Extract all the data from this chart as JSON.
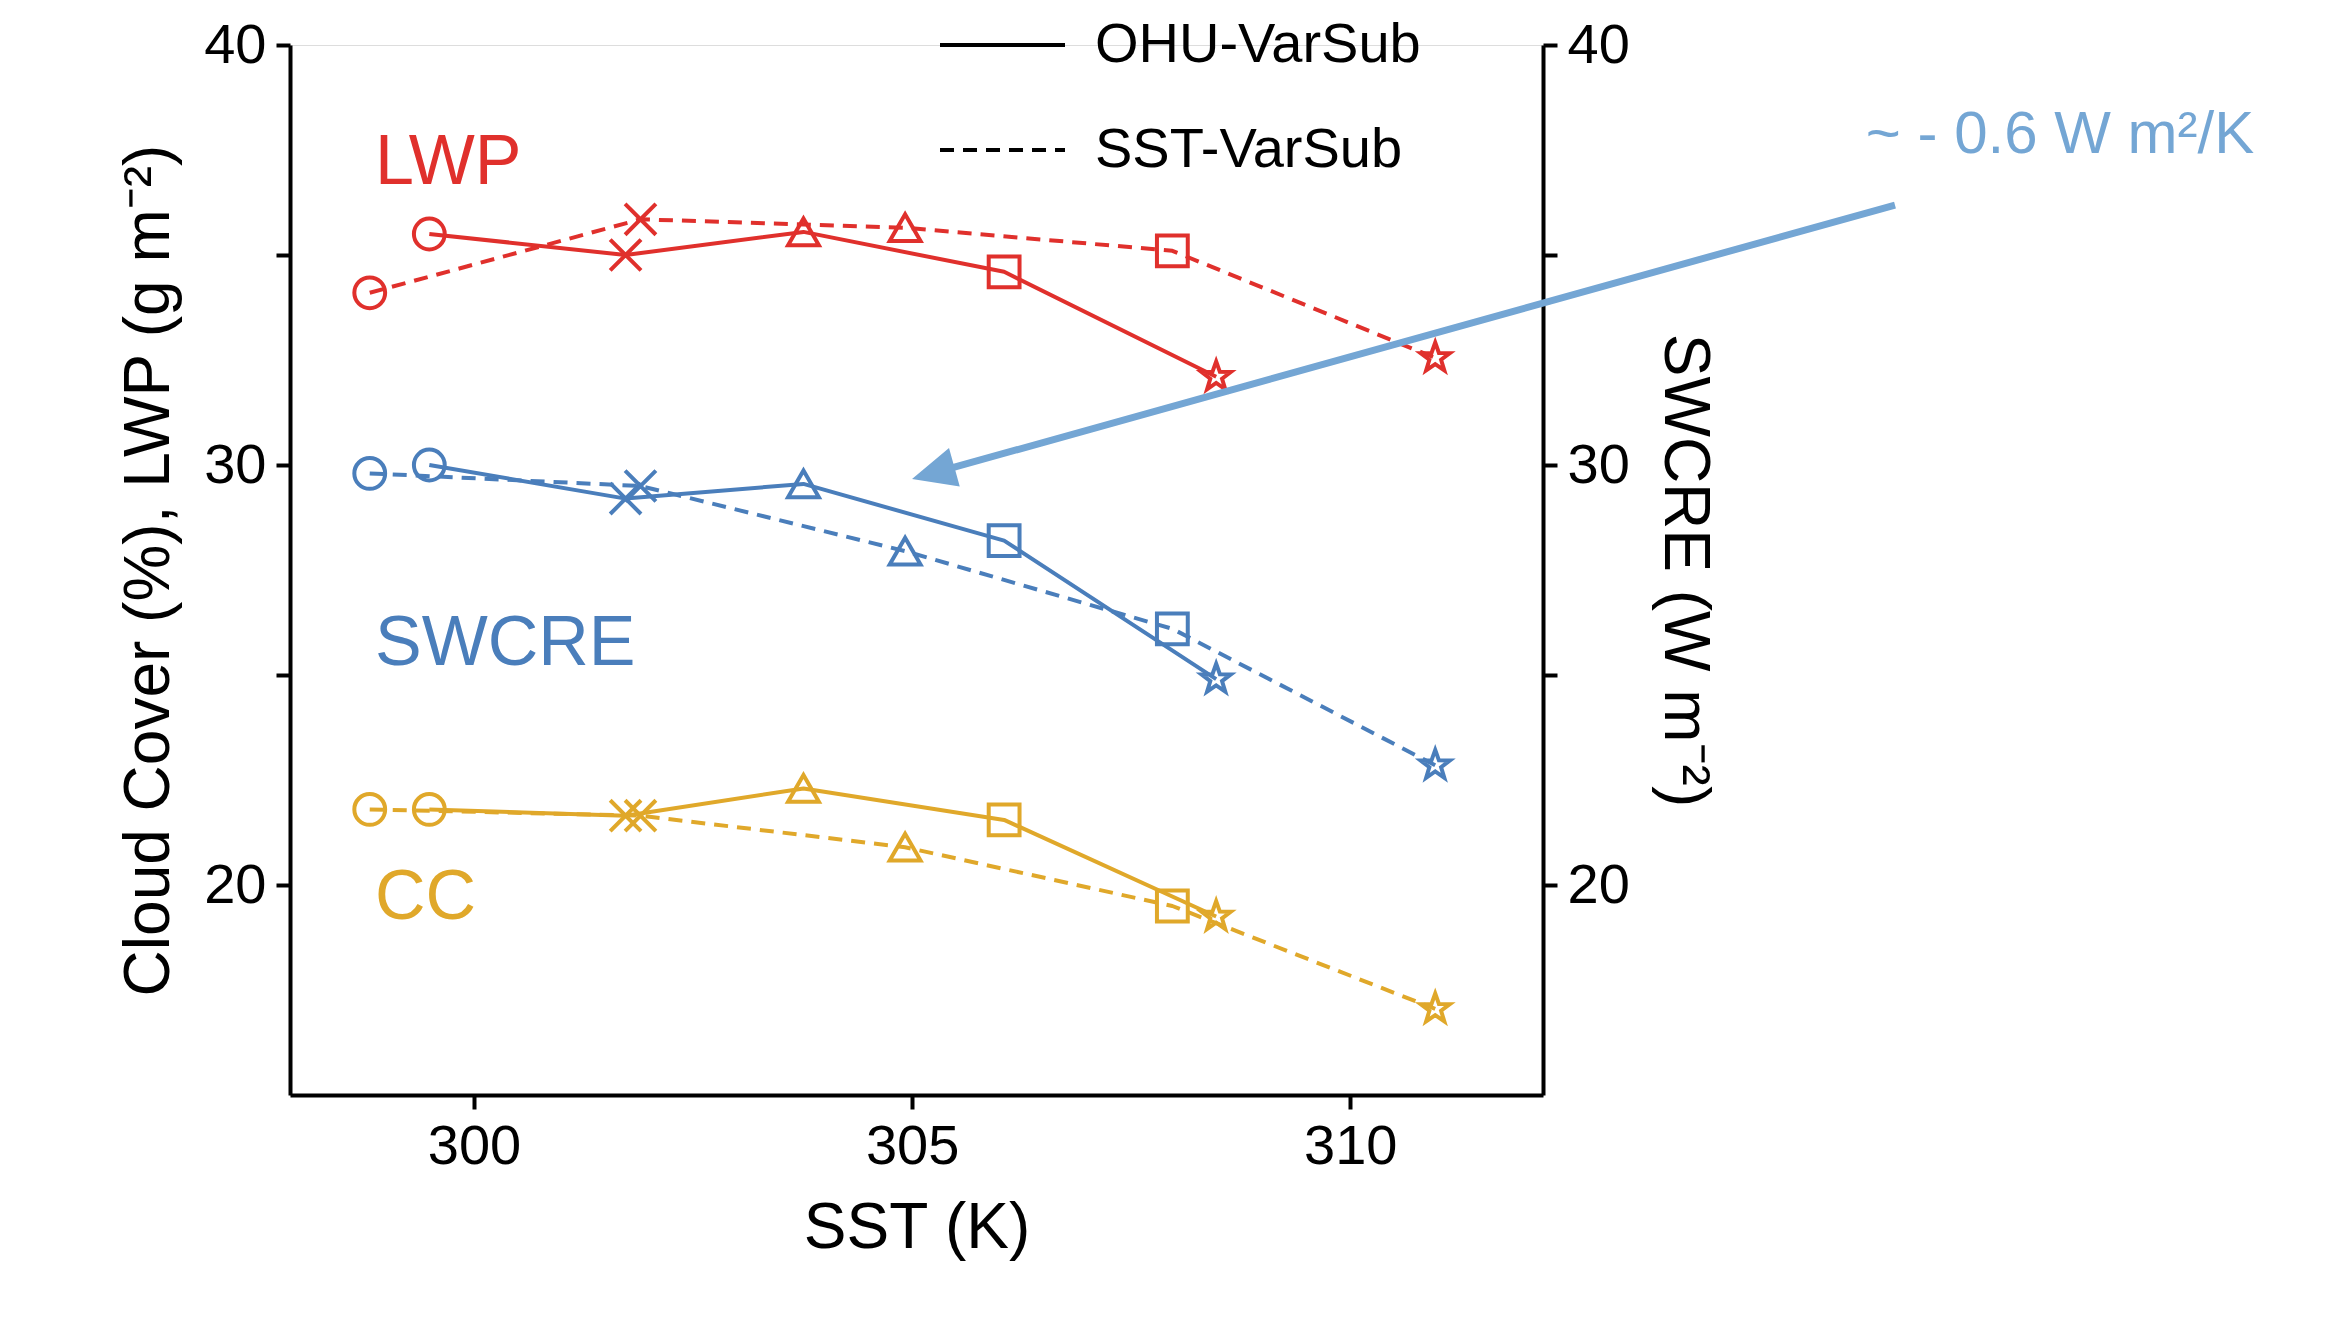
{
  "chart_data": {
    "type": "line",
    "xlabel": "SST (K)",
    "ylabel": "Cloud Cover (%), LWP (g m⁻²)",
    "y2label": "SWCRE (W m⁻²)",
    "xlim": [
      297.9,
      312.2
    ],
    "xticks": [
      300,
      305,
      310
    ],
    "ylim": [
      15,
      40
    ],
    "yticks": [
      20,
      {
        "value": 25,
        "label": null
      },
      30,
      {
        "value": 35,
        "label": null
      },
      40
    ],
    "y2lim": [
      15,
      40
    ],
    "y2ticks": [
      20,
      {
        "value": 25,
        "label": null
      },
      30,
      {
        "value": 35,
        "label": null
      },
      40
    ],
    "marker": "circle",
    "grid": false,
    "series": [
      {
        "color": "#e0302c",
        "line_style": "solid",
        "x": [
          299.49,
          301.73,
          303.76,
          306.05,
          308.47
        ],
        "values": [
          35.5,
          35.0,
          35.55,
          34.6,
          32.1
        ]
      },
      {
        "color": "#e0302c",
        "line_style": "dashed",
        "x": [
          298.81,
          301.9,
          304.92,
          307.97,
          310.97
        ],
        "values": [
          34.1,
          35.85,
          35.65,
          35.1,
          32.55
        ]
      },
      {
        "color": "#4a7ebb",
        "line_style": "solid",
        "x": [
          299.49,
          301.73,
          303.76,
          306.05,
          308.47
        ],
        "values": [
          30.0,
          29.2,
          29.55,
          28.2,
          24.9
        ]
      },
      {
        "color": "#4a7ebb",
        "line_style": "dashed",
        "x": [
          298.81,
          301.9,
          304.92,
          307.97,
          310.97
        ],
        "values": [
          29.8,
          29.5,
          27.95,
          26.1,
          22.85
        ]
      },
      {
        "color": "#e0a82a",
        "line_style": "solid",
        "x": [
          299.49,
          301.73,
          303.76,
          306.05,
          308.47
        ],
        "values": [
          21.8,
          21.65,
          22.3,
          21.55,
          19.25
        ]
      },
      {
        "color": "#e0a82a",
        "line_style": "dashed",
        "x": [
          298.81,
          301.9,
          304.92,
          307.97,
          310.97
        ],
        "values": [
          21.8,
          21.65,
          20.9,
          19.5,
          17.05
        ]
      }
    ],
    "annotations": [
      "LWP",
      "SWCRE",
      "CC",
      "OHU-VarSub",
      "SST-VarSub",
      "~ - 0.6 W m²/K"
    ]
  }
}
